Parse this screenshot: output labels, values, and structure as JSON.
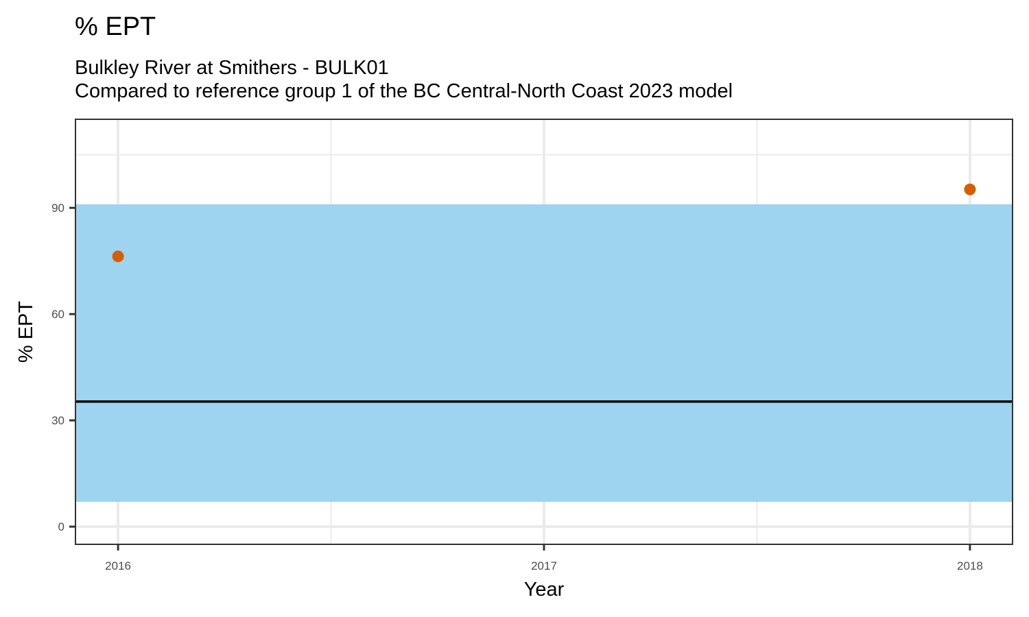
{
  "chart_data": {
    "type": "scatter",
    "title": "% EPT",
    "subtitle_line1": "Bulkley River at Smithers - BULK01",
    "subtitle_line2": "Compared to reference group 1 of the BC Central-North Coast 2023 model",
    "xlabel": "Year",
    "ylabel": "% EPT",
    "x_ticks": [
      2016,
      2017,
      2018
    ],
    "x_tick_labels": [
      "2016",
      "2017",
      "2018"
    ],
    "y_ticks": [
      0,
      30,
      60,
      90
    ],
    "y_tick_labels": [
      "0",
      "30",
      "60",
      "90"
    ],
    "xlim": [
      2015.9,
      2018.1
    ],
    "ylim": [
      -5,
      115
    ],
    "grid": true,
    "reference_band": {
      "lower": 7,
      "upper": 91,
      "color": "#9bd3f0"
    },
    "reference_line": {
      "value": 35.3,
      "color": "#000000"
    },
    "series": [
      {
        "color": "#d55e00",
        "points": [
          {
            "x": 2016,
            "y": 76.3
          },
          {
            "x": 2018,
            "y": 95.2
          }
        ]
      }
    ]
  }
}
